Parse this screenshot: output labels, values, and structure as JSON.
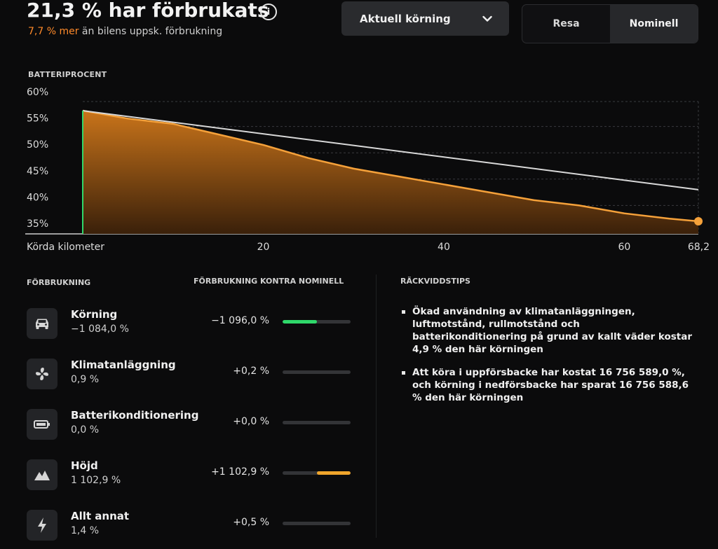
{
  "header": {
    "title": "21,3 % har förbrukats",
    "subtitle_accent": "7,7 % mer",
    "subtitle_rest": " än bilens uppsk. förbrukning"
  },
  "dropdown": {
    "selected": "Aktuell körning"
  },
  "toggle": {
    "options": [
      "Resa",
      "Nominell"
    ],
    "active": "Nominell"
  },
  "chart_data": {
    "type": "area",
    "title": "BATTERIPROCENT",
    "xlabel": "Körda kilometer",
    "x_ticks": [
      "20",
      "40",
      "60",
      "68,2"
    ],
    "y_ticks": [
      "60%",
      "55%",
      "50%",
      "45%",
      "40%",
      "35%"
    ],
    "xlim": [
      0,
      68.2
    ],
    "ylim": [
      35,
      60
    ],
    "grid": true,
    "series": [
      {
        "color": "#f5a13a",
        "x": [
          0,
          5,
          10,
          15,
          20,
          25,
          30,
          35,
          40,
          45,
          50,
          55,
          60,
          65,
          68.2
        ],
        "values": [
          58,
          56.5,
          55.5,
          53.5,
          51.5,
          49,
          47,
          45.5,
          44,
          42.5,
          41,
          40,
          38.5,
          37.5,
          37
        ]
      },
      {
        "color": "#d8d8d8",
        "x": [
          0,
          68.2
        ],
        "values": [
          58,
          43
        ]
      }
    ]
  },
  "consumption": {
    "header_left": "FÖRBRUKNING",
    "header_right": "FÖRBRUKNING KONTRA NOMINELL",
    "rows": [
      {
        "icon": "car-icon",
        "name": "Körning",
        "value": "−1 084,0 %",
        "delta": "−1 096,0 %",
        "bar_fraction": 0.5,
        "bar_color": "#2fd86a",
        "bar_side": "left"
      },
      {
        "icon": "fan-icon",
        "name": "Klimatanläggning",
        "value": "0,9 %",
        "delta": "+0,2 %",
        "bar_fraction": 0,
        "bar_color": "#f0a52c",
        "bar_side": "right"
      },
      {
        "icon": "battery-icon",
        "name": "Batterikonditionering",
        "value": "0,0 %",
        "delta": "+0,0 %",
        "bar_fraction": 0,
        "bar_color": "#f0a52c",
        "bar_side": "right"
      },
      {
        "icon": "mountain-icon",
        "name": "Höjd",
        "value": "1 102,9 %",
        "delta": "+1 102,9 %",
        "bar_fraction": 0.5,
        "bar_color": "#f0a52c",
        "bar_side": "right"
      },
      {
        "icon": "bolt-icon",
        "name": "Allt annat",
        "value": "1,4 %",
        "delta": "+0,5 %",
        "bar_fraction": 0,
        "bar_color": "#f0a52c",
        "bar_side": "right"
      }
    ]
  },
  "tips": {
    "header": "RÄCKVIDDSTIPS",
    "items": [
      "Ökad användning av klimatanläggningen, luftmotstånd, rullmotstånd och batterikonditionering på grund av kallt väder kostar 4,9 % den här körningen",
      "Att köra i uppförsbacke har kostat 16 756 589,0 %, och körning i nedförsbacke har sparat 16 756 588,6 % den här körningen"
    ]
  }
}
